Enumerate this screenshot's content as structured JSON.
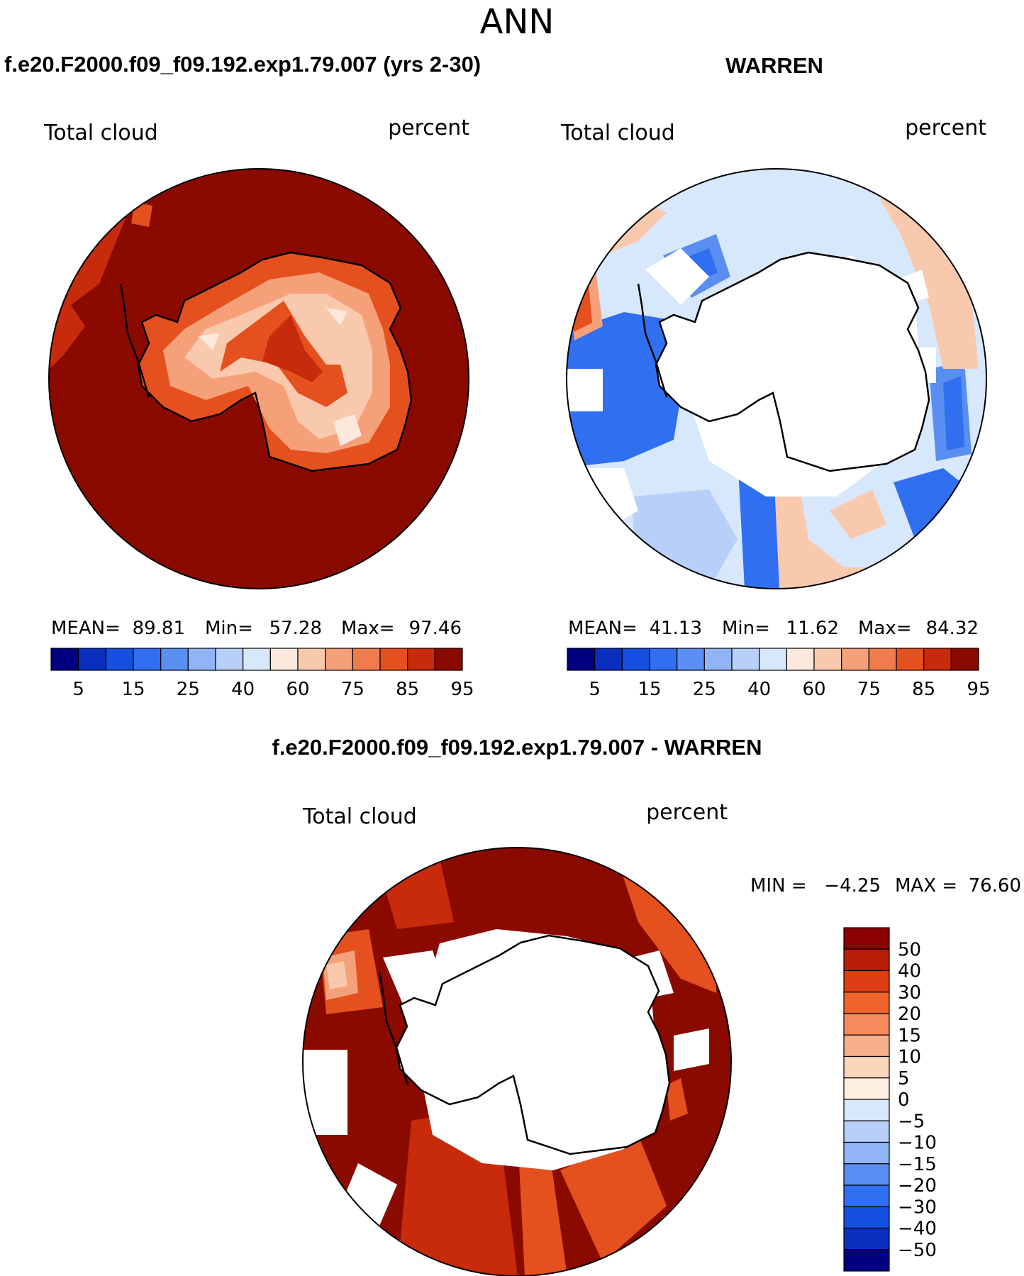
{
  "figure_title": "ANN",
  "panels": {
    "top_left": {
      "case_title": "f.e20.F2000.f09_f09.192.exp1.79.007 (yrs 2-30)",
      "variable": "Total cloud",
      "units": "percent",
      "mean_label": "MEAN=",
      "mean": "89.81",
      "min_label": "Min=",
      "min": "57.28",
      "max_label": "Max=",
      "max": "97.46"
    },
    "top_right": {
      "case_title": "WARREN",
      "variable": "Total cloud",
      "units": "percent",
      "mean_label": "MEAN=",
      "mean": "41.13",
      "min_label": "Min=",
      "min": "11.62",
      "max_label": "Max=",
      "max": "84.32"
    },
    "bottom": {
      "case_title": "f.e20.F2000.f09_f09.192.exp1.79.007 - WARREN",
      "variable": "Total cloud",
      "units": "percent",
      "min_label": "MIN =",
      "min": "−4.25",
      "max_label": "MAX =",
      "max": "76.60"
    }
  },
  "colorbars": {
    "horizontal": {
      "colors": [
        "#000080",
        "#0a2fbf",
        "#1650e0",
        "#2f6ff0",
        "#5a8ef2",
        "#90b4f6",
        "#b8d0f9",
        "#d8e8fc",
        "#fce8dc",
        "#f9c9ae",
        "#f6a07a",
        "#f07c4e",
        "#e4501e",
        "#c82a0c",
        "#8b0a00"
      ],
      "tick_labels": [
        "5",
        "15",
        "25",
        "40",
        "60",
        "75",
        "85",
        "95"
      ]
    },
    "vertical": {
      "colors": [
        "#8b0000",
        "#b81e08",
        "#de3e14",
        "#f0642c",
        "#f68a5e",
        "#f8b08c",
        "#fbd4bc",
        "#fdeee2",
        "#d8e8fc",
        "#b8d0f9",
        "#90b4f6",
        "#5a8ef2",
        "#2f6ff0",
        "#1650e0",
        "#0a2fbf",
        "#000080"
      ],
      "tick_labels": [
        "50",
        "40",
        "30",
        "20",
        "15",
        "10",
        "5",
        "0",
        "−5",
        "−10",
        "−15",
        "−20",
        "−30",
        "−40",
        "−50"
      ]
    }
  },
  "map_colors": {
    "deep_red": "#8b0a00",
    "red": "#c82a0c",
    "orange": "#e4501e",
    "light_orange": "#f6a07a",
    "pale_orange": "#f9c9ae",
    "cream": "#fce8dc",
    "pale_blue": "#d8e8fc",
    "light_blue": "#b8d0f9",
    "medium_blue": "#5a8ef2",
    "blue": "#2f6ff0"
  }
}
